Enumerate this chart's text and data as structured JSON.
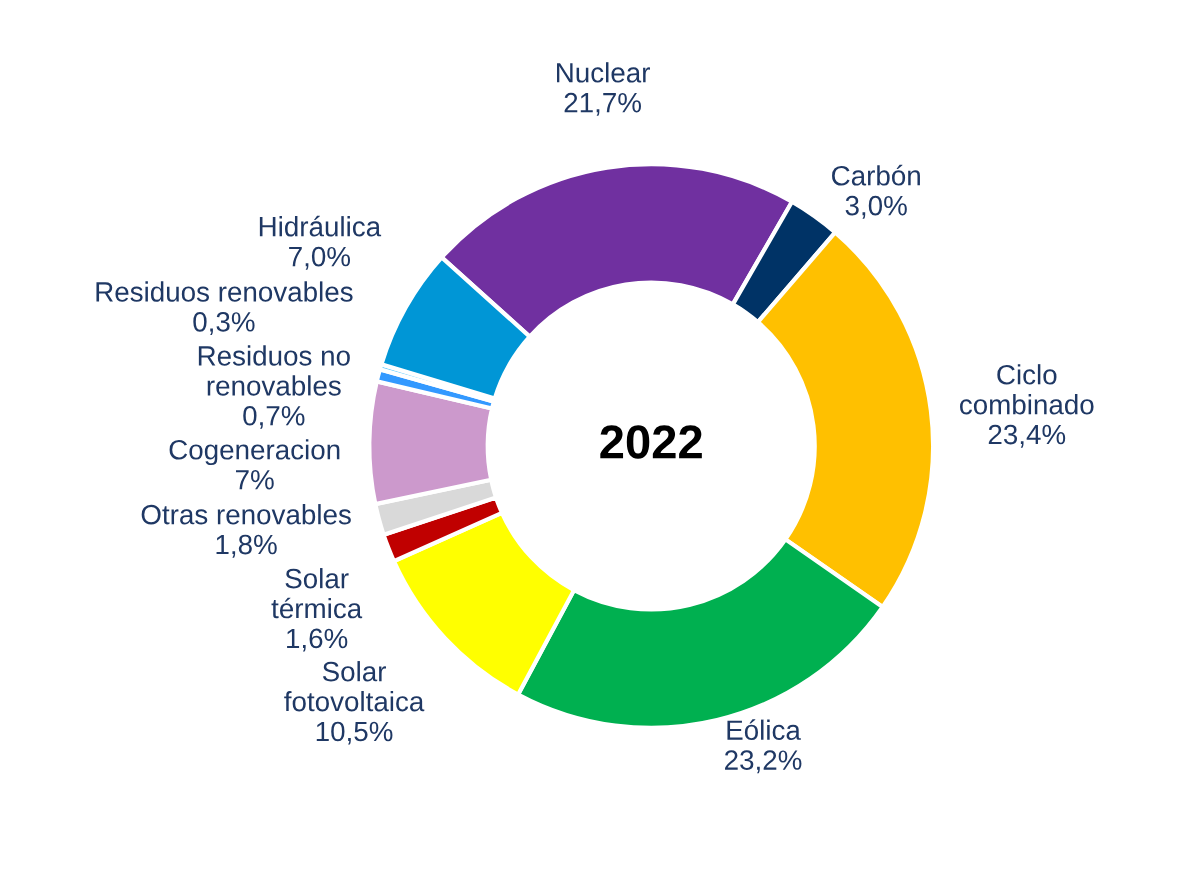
{
  "chart_data": {
    "type": "donut",
    "title": "2022",
    "categories": [
      "Nuclear",
      "Carbón",
      "Ciclo\ncombinado",
      "Eólica",
      "Solar\nfotovoltaica",
      "Solar\ntérmica",
      "Otras renovables",
      "Cogeneracion",
      "Residuos no\nrenovables",
      "Residuos renovables",
      "Hidráulica"
    ],
    "values": [
      21.7,
      3.0,
      23.4,
      23.2,
      10.5,
      1.6,
      1.8,
      7,
      0.7,
      0.3,
      7.0
    ],
    "value_labels": [
      "21,7%",
      "3,0%",
      "23,4%",
      "23,2%",
      "10,5%",
      "1,6%",
      "1,8%",
      "7%",
      "0,7%",
      "0,3%",
      "7,0%"
    ],
    "colors": [
      "#7030a0",
      "#003366",
      "#ffc000",
      "#00b050",
      "#ffff00",
      "#c00000",
      "#d9d9d9",
      "#cc99cc",
      "#3399ff",
      "#66ccff",
      "#0096d6"
    ],
    "legend": false
  }
}
